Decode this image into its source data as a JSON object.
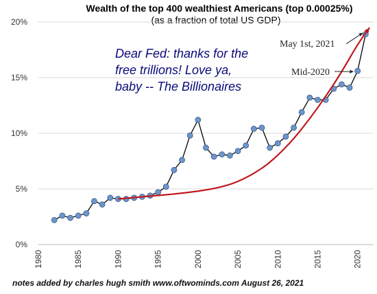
{
  "chart_data": {
    "type": "line",
    "title": "Wealth of the top 400 wealthiest Americans (top 0.00025%)",
    "subtitle": "(as a fraction of total US GDP)",
    "xlabel": "",
    "ylabel": "",
    "xlim": [
      1980,
      2022
    ],
    "ylim": [
      0,
      20
    ],
    "x_ticks": [
      "1980",
      "1985",
      "1990",
      "1995",
      "2000",
      "2005",
      "2010",
      "2015",
      "2020"
    ],
    "y_ticks": [
      "0%",
      "5%",
      "10%",
      "15%",
      "20%"
    ],
    "grid": "horizontal",
    "series": [
      {
        "color": "#000000",
        "marker_color": "#6e95c9",
        "x": [
          1982,
          1983,
          1984,
          1985,
          1986,
          1987,
          1988,
          1989,
          1990,
          1991,
          1992,
          1993,
          1994,
          1995,
          1996,
          1997,
          1998,
          1999,
          2000,
          2001,
          2002,
          2003,
          2004,
          2005,
          2006,
          2007,
          2008,
          2009,
          2010,
          2011,
          2012,
          2013,
          2014,
          2015,
          2016,
          2017,
          2018,
          2019,
          2020,
          2021
        ],
        "y": [
          2.2,
          2.6,
          2.4,
          2.6,
          2.8,
          3.9,
          3.6,
          4.2,
          4.1,
          4.1,
          4.2,
          4.3,
          4.4,
          4.7,
          5.2,
          6.7,
          7.6,
          9.8,
          11.2,
          8.7,
          7.9,
          8.1,
          8.0,
          8.4,
          8.9,
          10.4,
          10.5,
          8.7,
          9.1,
          9.7,
          10.5,
          11.9,
          13.2,
          13.0,
          13.0,
          14.0,
          14.4,
          14.1,
          15.6,
          18.9
        ]
      },
      {
        "color": "#c0181e",
        "type": "trend",
        "x": [
          1990,
          1994,
          1998,
          2002,
          2005,
          2008,
          2010,
          2012,
          2014,
          2016,
          2018,
          2020,
          2021.5
        ],
        "y": [
          4.1,
          4.35,
          4.6,
          5.0,
          5.6,
          6.8,
          8.0,
          9.5,
          11.3,
          13.3,
          15.5,
          18.0,
          19.5
        ]
      }
    ],
    "annotations": [
      {
        "text": "May 1st, 2021",
        "x": 2021,
        "y": 18.9
      },
      {
        "text": "Mid-2020",
        "x": 2020,
        "y": 15.6
      }
    ]
  },
  "note": {
    "line1": "Dear Fed: thanks for the",
    "line2": "free trillions! Love ya,",
    "line3": "baby -- The Billionaires"
  },
  "footer": "notes added by charles hugh smith   www.oftwominds.com   August 26, 2021"
}
